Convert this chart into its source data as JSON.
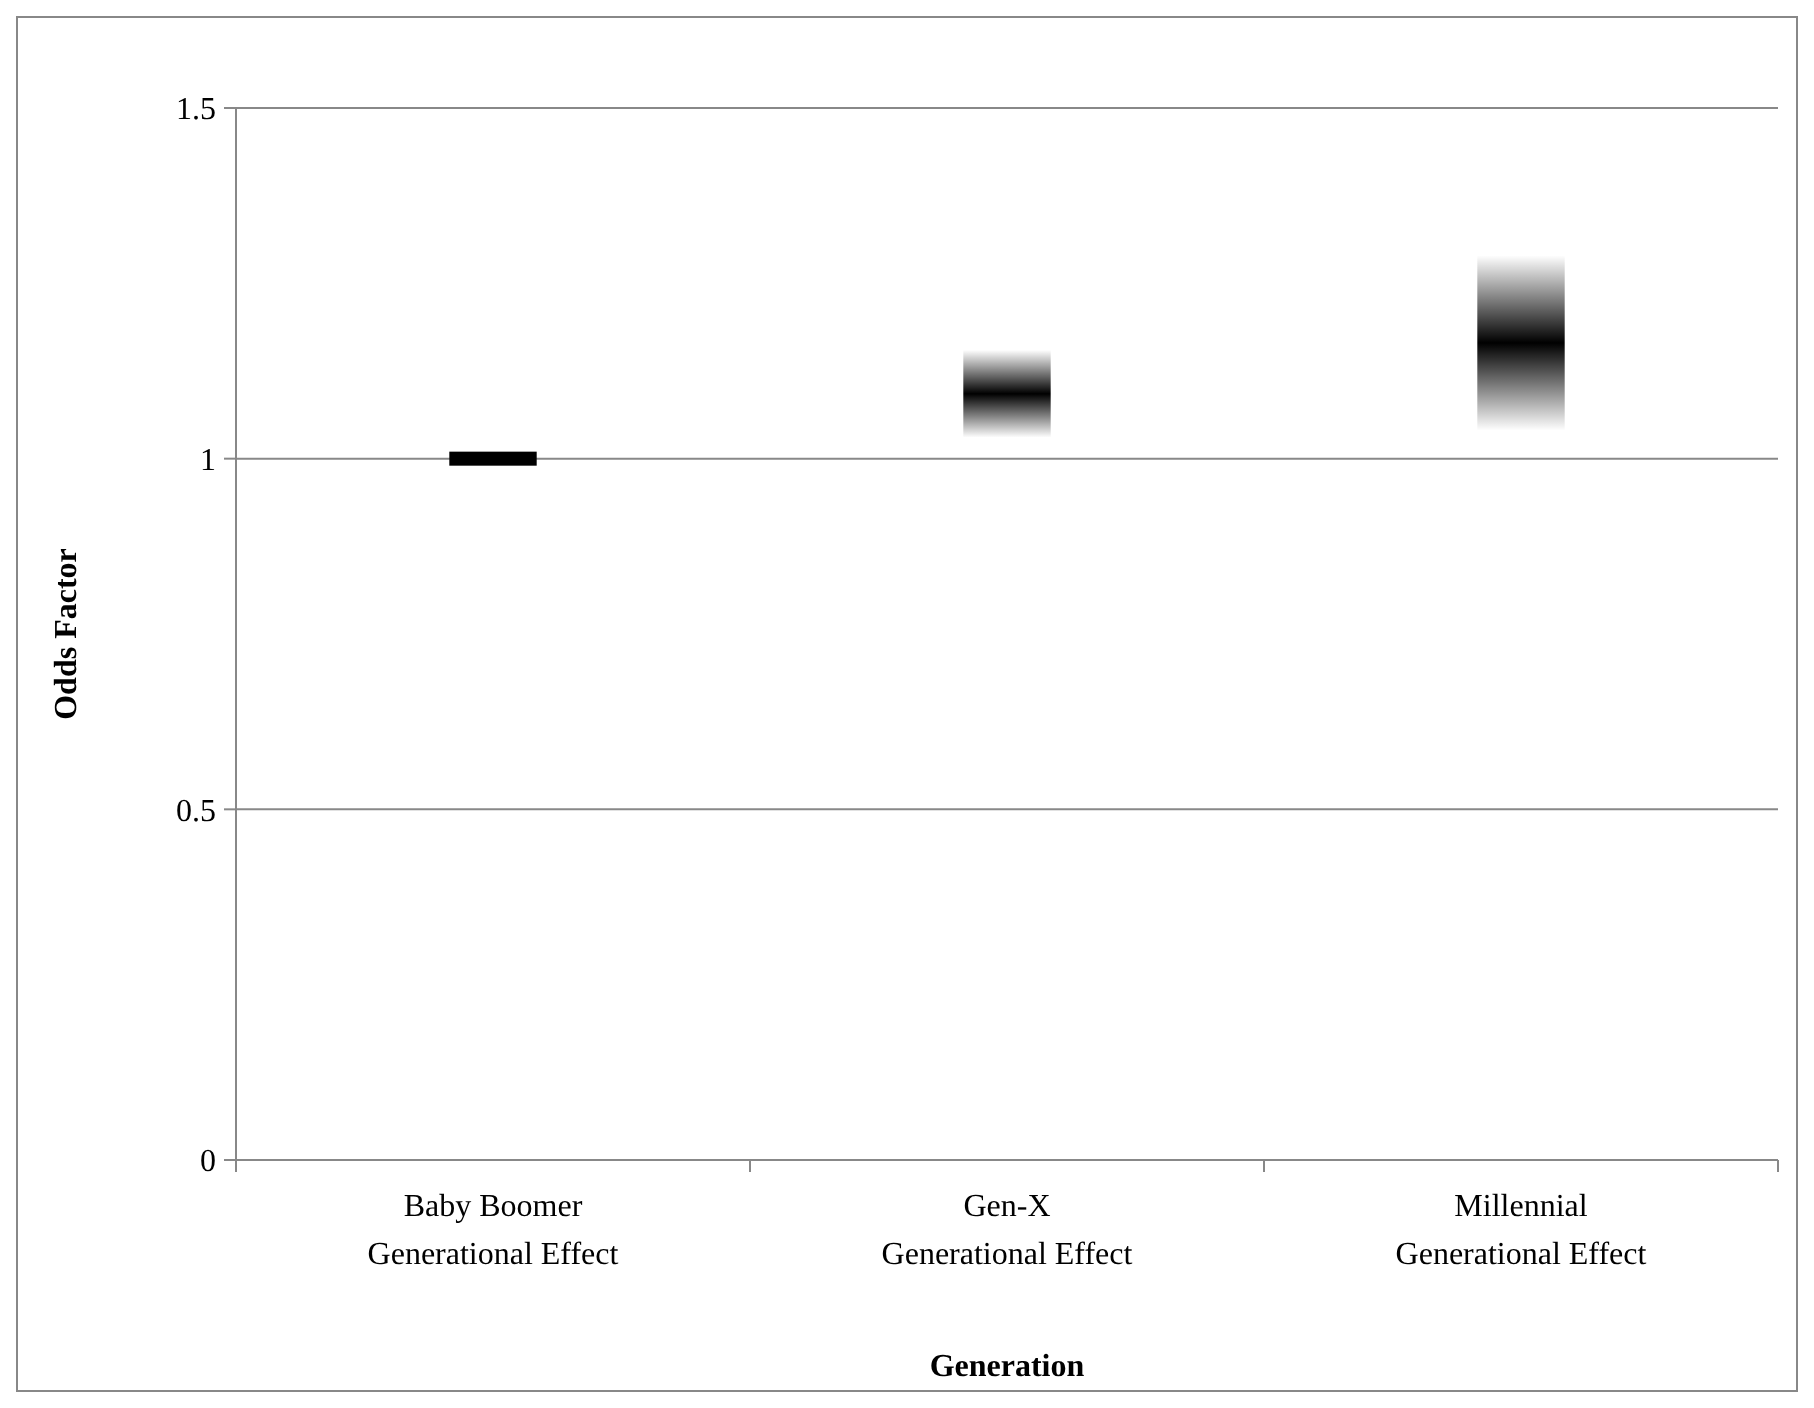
{
  "chart_data": {
    "type": "bar",
    "xlabel": "Generation",
    "ylabel": "Odds Factor",
    "categories": [
      "Baby Boomer\nGenerational Effect",
      "Gen-X\nGenerational Effect",
      "Millennial\nGenerational Effect"
    ],
    "base": [
      0.99,
      1.03,
      1.04
    ],
    "values": [
      0.02,
      0.125,
      0.25
    ],
    "color": "#000000",
    "ylim": [
      0,
      1.5
    ],
    "yticks": [
      0,
      0.5,
      1,
      1.5
    ],
    "grid": "y"
  }
}
